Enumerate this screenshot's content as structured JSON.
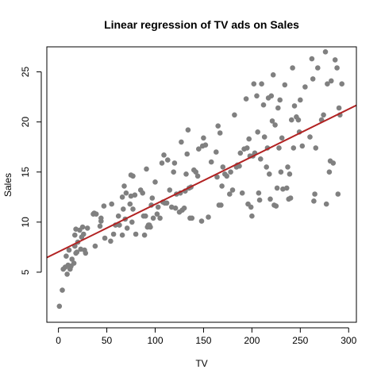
{
  "chart_data": {
    "type": "scatter",
    "title": "Linear regression of TV ads on Sales",
    "xlabel": "TV",
    "ylabel": "Sales",
    "xlim": [
      -12,
      308
    ],
    "ylim": [
      0,
      27.5
    ],
    "xticks": [
      0,
      50,
      100,
      150,
      200,
      250,
      300
    ],
    "yticks": [
      5,
      10,
      15,
      20,
      25
    ],
    "grid": false,
    "legend": "none",
    "point_color": "#808080",
    "line_color": "#b22222",
    "regression": {
      "intercept": 7.03,
      "slope": 0.0475
    },
    "points": [
      [
        1,
        1.6
      ],
      [
        4,
        3.2
      ],
      [
        5,
        5.3
      ],
      [
        7,
        5.5
      ],
      [
        8,
        6.6
      ],
      [
        9,
        4.8
      ],
      [
        10,
        5.7
      ],
      [
        11,
        7.2
      ],
      [
        12,
        5.3
      ],
      [
        13,
        5.6
      ],
      [
        14,
        6.3
      ],
      [
        16,
        5.9
      ],
      [
        17,
        7.6
      ],
      [
        17,
        8.7
      ],
      [
        18,
        9.3
      ],
      [
        18,
        6.9
      ],
      [
        19,
        7.0
      ],
      [
        20,
        8.0
      ],
      [
        22,
        9.2
      ],
      [
        23,
        7.3
      ],
      [
        24,
        8.5
      ],
      [
        25,
        9.5
      ],
      [
        26,
        8.8
      ],
      [
        27,
        7.2
      ],
      [
        28,
        6.9
      ],
      [
        30,
        9.4
      ],
      [
        36,
        10.8
      ],
      [
        37,
        10.9
      ],
      [
        38,
        7.6
      ],
      [
        39,
        10.8
      ],
      [
        43,
        9.6
      ],
      [
        44,
        10.1
      ],
      [
        44,
        10.4
      ],
      [
        47,
        11.6
      ],
      [
        48,
        8.4
      ],
      [
        54,
        8.1
      ],
      [
        55,
        11.8
      ],
      [
        57,
        8.8
      ],
      [
        59,
        9.7
      ],
      [
        62,
        10.6
      ],
      [
        63,
        9.7
      ],
      [
        66,
        8.7
      ],
      [
        66,
        12.5
      ],
      [
        67,
        11.3
      ],
      [
        68,
        13.6
      ],
      [
        69,
        10.3
      ],
      [
        70,
        12.9
      ],
      [
        71,
        9.4
      ],
      [
        74,
        11.8
      ],
      [
        75,
        14.7
      ],
      [
        75,
        12.6
      ],
      [
        76,
        10.0
      ],
      [
        77,
        14.6
      ],
      [
        77,
        11.3
      ],
      [
        79,
        12.7
      ],
      [
        80,
        8.8
      ],
      [
        85,
        13.2
      ],
      [
        87,
        12.9
      ],
      [
        88,
        10.6
      ],
      [
        89,
        8.7
      ],
      [
        90,
        10.6
      ],
      [
        91,
        15.3
      ],
      [
        92,
        9.5
      ],
      [
        93,
        9.7
      ],
      [
        94,
        9.7
      ],
      [
        95,
        9.5
      ],
      [
        96,
        11.7
      ],
      [
        97,
        12.4
      ],
      [
        98,
        10.4
      ],
      [
        100,
        14.0
      ],
      [
        102,
        10.8
      ],
      [
        103,
        11.5
      ],
      [
        105,
        10.4
      ],
      [
        107,
        15.9
      ],
      [
        108,
        12.0
      ],
      [
        109,
        16.7
      ],
      [
        110,
        11.9
      ],
      [
        112,
        11.9
      ],
      [
        113,
        16.2
      ],
      [
        115,
        13.2
      ],
      [
        117,
        11.5
      ],
      [
        119,
        15.0
      ],
      [
        120,
        15.9
      ],
      [
        121,
        11.4
      ],
      [
        122,
        12.8
      ],
      [
        125,
        11.0
      ],
      [
        126,
        12.9
      ],
      [
        127,
        18.0
      ],
      [
        128,
        11.2
      ],
      [
        130,
        11.4
      ],
      [
        131,
        13.1
      ],
      [
        132,
        14.8
      ],
      [
        133,
        16.8
      ],
      [
        134,
        19.2
      ],
      [
        135,
        13.4
      ],
      [
        136,
        10.4
      ],
      [
        137,
        13.5
      ],
      [
        138,
        10.4
      ],
      [
        140,
        15.2
      ],
      [
        142,
        15.0
      ],
      [
        144,
        14.6
      ],
      [
        145,
        17.3
      ],
      [
        148,
        10.1
      ],
      [
        149,
        17.6
      ],
      [
        150,
        18.4
      ],
      [
        152,
        17.7
      ],
      [
        155,
        10.5
      ],
      [
        158,
        16.0
      ],
      [
        163,
        17.0
      ],
      [
        164,
        14.5
      ],
      [
        165,
        19.6
      ],
      [
        166,
        11.7
      ],
      [
        167,
        18.9
      ],
      [
        168,
        11.7
      ],
      [
        169,
        13.6
      ],
      [
        170,
        15.5
      ],
      [
        172,
        14.8
      ],
      [
        174,
        14.6
      ],
      [
        177,
        12.8
      ],
      [
        178,
        15.0
      ],
      [
        180,
        13.2
      ],
      [
        182,
        20.7
      ],
      [
        184,
        15.5
      ],
      [
        185,
        15.7
      ],
      [
        187,
        15.6
      ],
      [
        188,
        16.9
      ],
      [
        190,
        12.9
      ],
      [
        192,
        17.3
      ],
      [
        194,
        22.3
      ],
      [
        195,
        17.4
      ],
      [
        196,
        11.8
      ],
      [
        197,
        18.3
      ],
      [
        198,
        16.6
      ],
      [
        199,
        11.5
      ],
      [
        200,
        10.6
      ],
      [
        201,
        16.6
      ],
      [
        202,
        23.8
      ],
      [
        203,
        16.9
      ],
      [
        205,
        22.6
      ],
      [
        206,
        19.0
      ],
      [
        207,
        12.9
      ],
      [
        208,
        12.2
      ],
      [
        209,
        16.3
      ],
      [
        210,
        23.8
      ],
      [
        212,
        21.7
      ],
      [
        213,
        18.5
      ],
      [
        215,
        15.5
      ],
      [
        216,
        17.4
      ],
      [
        217,
        22.4
      ],
      [
        218,
        14.8
      ],
      [
        219,
        12.3
      ],
      [
        220,
        22.6
      ],
      [
        221,
        20.1
      ],
      [
        222,
        24.7
      ],
      [
        223,
        11.7
      ],
      [
        224,
        19.7
      ],
      [
        225,
        11.6
      ],
      [
        226,
        13.4
      ],
      [
        227,
        21.4
      ],
      [
        228,
        17.4
      ],
      [
        229,
        22.2
      ],
      [
        230,
        15.0
      ],
      [
        231,
        18.4
      ],
      [
        232,
        13.3
      ],
      [
        234,
        23.7
      ],
      [
        236,
        13.4
      ],
      [
        237,
        15.5
      ],
      [
        238,
        12.3
      ],
      [
        239,
        14.8
      ],
      [
        240,
        12.4
      ],
      [
        241,
        20.2
      ],
      [
        242,
        25.4
      ],
      [
        243,
        17.4
      ],
      [
        244,
        21.6
      ],
      [
        246,
        20.5
      ],
      [
        248,
        20.2
      ],
      [
        249,
        19.0
      ],
      [
        250,
        22.2
      ],
      [
        252,
        17.6
      ],
      [
        255,
        23.5
      ],
      [
        260,
        18.5
      ],
      [
        262,
        26.3
      ],
      [
        263,
        24.3
      ],
      [
        264,
        12.1
      ],
      [
        265,
        12.8
      ],
      [
        266,
        17.4
      ],
      [
        268,
        25.4
      ],
      [
        272,
        20.2
      ],
      [
        274,
        20.7
      ],
      [
        276,
        27.0
      ],
      [
        277,
        11.8
      ],
      [
        278,
        23.8
      ],
      [
        280,
        15.0
      ],
      [
        281,
        16.1
      ],
      [
        282,
        24.1
      ],
      [
        284,
        15.9
      ],
      [
        286,
        26.2
      ],
      [
        288,
        25.4
      ],
      [
        289,
        12.8
      ],
      [
        290,
        21.4
      ],
      [
        291,
        20.7
      ],
      [
        293,
        23.8
      ]
    ]
  }
}
